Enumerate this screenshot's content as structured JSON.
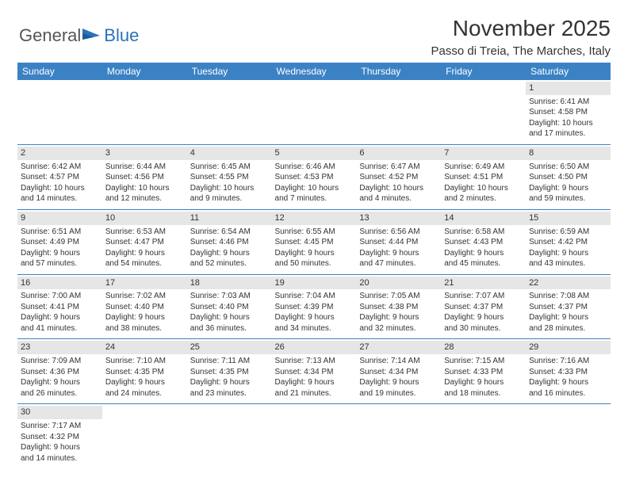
{
  "logo": {
    "text1": "General",
    "text2": "Blue",
    "flag_color": "#2b72b8"
  },
  "header": {
    "month_title": "November 2025",
    "location": "Passo di Treia, The Marches, Italy"
  },
  "calendar": {
    "day_headers": [
      "Sunday",
      "Monday",
      "Tuesday",
      "Wednesday",
      "Thursday",
      "Friday",
      "Saturday"
    ],
    "header_bg": "#3b82c4",
    "header_fg": "#ffffff",
    "rule_color": "#3b82c4",
    "daynum_bg": "#e6e6e6",
    "weeks": [
      [
        null,
        null,
        null,
        null,
        null,
        null,
        {
          "n": "1",
          "sr": "Sunrise: 6:41 AM",
          "ss": "Sunset: 4:58 PM",
          "dl1": "Daylight: 10 hours",
          "dl2": "and 17 minutes."
        }
      ],
      [
        {
          "n": "2",
          "sr": "Sunrise: 6:42 AM",
          "ss": "Sunset: 4:57 PM",
          "dl1": "Daylight: 10 hours",
          "dl2": "and 14 minutes."
        },
        {
          "n": "3",
          "sr": "Sunrise: 6:44 AM",
          "ss": "Sunset: 4:56 PM",
          "dl1": "Daylight: 10 hours",
          "dl2": "and 12 minutes."
        },
        {
          "n": "4",
          "sr": "Sunrise: 6:45 AM",
          "ss": "Sunset: 4:55 PM",
          "dl1": "Daylight: 10 hours",
          "dl2": "and 9 minutes."
        },
        {
          "n": "5",
          "sr": "Sunrise: 6:46 AM",
          "ss": "Sunset: 4:53 PM",
          "dl1": "Daylight: 10 hours",
          "dl2": "and 7 minutes."
        },
        {
          "n": "6",
          "sr": "Sunrise: 6:47 AM",
          "ss": "Sunset: 4:52 PM",
          "dl1": "Daylight: 10 hours",
          "dl2": "and 4 minutes."
        },
        {
          "n": "7",
          "sr": "Sunrise: 6:49 AM",
          "ss": "Sunset: 4:51 PM",
          "dl1": "Daylight: 10 hours",
          "dl2": "and 2 minutes."
        },
        {
          "n": "8",
          "sr": "Sunrise: 6:50 AM",
          "ss": "Sunset: 4:50 PM",
          "dl1": "Daylight: 9 hours",
          "dl2": "and 59 minutes."
        }
      ],
      [
        {
          "n": "9",
          "sr": "Sunrise: 6:51 AM",
          "ss": "Sunset: 4:49 PM",
          "dl1": "Daylight: 9 hours",
          "dl2": "and 57 minutes."
        },
        {
          "n": "10",
          "sr": "Sunrise: 6:53 AM",
          "ss": "Sunset: 4:47 PM",
          "dl1": "Daylight: 9 hours",
          "dl2": "and 54 minutes."
        },
        {
          "n": "11",
          "sr": "Sunrise: 6:54 AM",
          "ss": "Sunset: 4:46 PM",
          "dl1": "Daylight: 9 hours",
          "dl2": "and 52 minutes."
        },
        {
          "n": "12",
          "sr": "Sunrise: 6:55 AM",
          "ss": "Sunset: 4:45 PM",
          "dl1": "Daylight: 9 hours",
          "dl2": "and 50 minutes."
        },
        {
          "n": "13",
          "sr": "Sunrise: 6:56 AM",
          "ss": "Sunset: 4:44 PM",
          "dl1": "Daylight: 9 hours",
          "dl2": "and 47 minutes."
        },
        {
          "n": "14",
          "sr": "Sunrise: 6:58 AM",
          "ss": "Sunset: 4:43 PM",
          "dl1": "Daylight: 9 hours",
          "dl2": "and 45 minutes."
        },
        {
          "n": "15",
          "sr": "Sunrise: 6:59 AM",
          "ss": "Sunset: 4:42 PM",
          "dl1": "Daylight: 9 hours",
          "dl2": "and 43 minutes."
        }
      ],
      [
        {
          "n": "16",
          "sr": "Sunrise: 7:00 AM",
          "ss": "Sunset: 4:41 PM",
          "dl1": "Daylight: 9 hours",
          "dl2": "and 41 minutes."
        },
        {
          "n": "17",
          "sr": "Sunrise: 7:02 AM",
          "ss": "Sunset: 4:40 PM",
          "dl1": "Daylight: 9 hours",
          "dl2": "and 38 minutes."
        },
        {
          "n": "18",
          "sr": "Sunrise: 7:03 AM",
          "ss": "Sunset: 4:40 PM",
          "dl1": "Daylight: 9 hours",
          "dl2": "and 36 minutes."
        },
        {
          "n": "19",
          "sr": "Sunrise: 7:04 AM",
          "ss": "Sunset: 4:39 PM",
          "dl1": "Daylight: 9 hours",
          "dl2": "and 34 minutes."
        },
        {
          "n": "20",
          "sr": "Sunrise: 7:05 AM",
          "ss": "Sunset: 4:38 PM",
          "dl1": "Daylight: 9 hours",
          "dl2": "and 32 minutes."
        },
        {
          "n": "21",
          "sr": "Sunrise: 7:07 AM",
          "ss": "Sunset: 4:37 PM",
          "dl1": "Daylight: 9 hours",
          "dl2": "and 30 minutes."
        },
        {
          "n": "22",
          "sr": "Sunrise: 7:08 AM",
          "ss": "Sunset: 4:37 PM",
          "dl1": "Daylight: 9 hours",
          "dl2": "and 28 minutes."
        }
      ],
      [
        {
          "n": "23",
          "sr": "Sunrise: 7:09 AM",
          "ss": "Sunset: 4:36 PM",
          "dl1": "Daylight: 9 hours",
          "dl2": "and 26 minutes."
        },
        {
          "n": "24",
          "sr": "Sunrise: 7:10 AM",
          "ss": "Sunset: 4:35 PM",
          "dl1": "Daylight: 9 hours",
          "dl2": "and 24 minutes."
        },
        {
          "n": "25",
          "sr": "Sunrise: 7:11 AM",
          "ss": "Sunset: 4:35 PM",
          "dl1": "Daylight: 9 hours",
          "dl2": "and 23 minutes."
        },
        {
          "n": "26",
          "sr": "Sunrise: 7:13 AM",
          "ss": "Sunset: 4:34 PM",
          "dl1": "Daylight: 9 hours",
          "dl2": "and 21 minutes."
        },
        {
          "n": "27",
          "sr": "Sunrise: 7:14 AM",
          "ss": "Sunset: 4:34 PM",
          "dl1": "Daylight: 9 hours",
          "dl2": "and 19 minutes."
        },
        {
          "n": "28",
          "sr": "Sunrise: 7:15 AM",
          "ss": "Sunset: 4:33 PM",
          "dl1": "Daylight: 9 hours",
          "dl2": "and 18 minutes."
        },
        {
          "n": "29",
          "sr": "Sunrise: 7:16 AM",
          "ss": "Sunset: 4:33 PM",
          "dl1": "Daylight: 9 hours",
          "dl2": "and 16 minutes."
        }
      ],
      [
        {
          "n": "30",
          "sr": "Sunrise: 7:17 AM",
          "ss": "Sunset: 4:32 PM",
          "dl1": "Daylight: 9 hours",
          "dl2": "and 14 minutes."
        },
        null,
        null,
        null,
        null,
        null,
        null
      ]
    ]
  }
}
